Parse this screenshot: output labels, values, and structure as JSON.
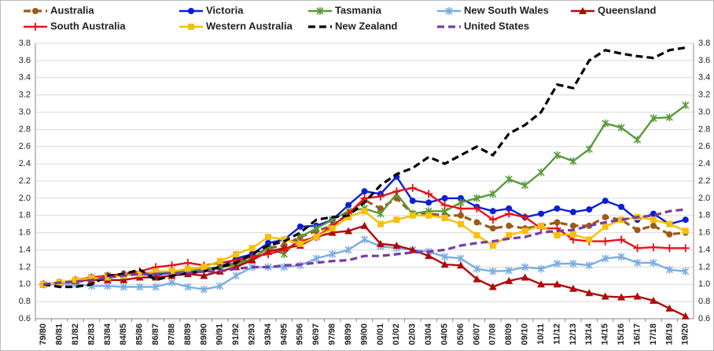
{
  "chart_data": {
    "type": "line",
    "categories": [
      "79/80",
      "80/81",
      "81/82",
      "82/83",
      "83/84",
      "84/85",
      "85/86",
      "86/87",
      "87/88",
      "88/89",
      "89/90",
      "90/91",
      "91/92",
      "92/93",
      "93/94",
      "94/95",
      "95/96",
      "96/97",
      "97/98",
      "98/99",
      "99/00",
      "00/01",
      "01/02",
      "02/03",
      "03/04",
      "04/05",
      "05/06",
      "06/07",
      "07/08",
      "08/09",
      "09/10",
      "10/11",
      "11/12",
      "12/13",
      "13/14",
      "14/15",
      "15/16",
      "16/17",
      "17/18",
      "18/19",
      "19/20"
    ],
    "ylim": [
      0.6,
      3.8
    ],
    "yticks": [
      {
        "value": 0.6,
        "label": "0.6"
      },
      {
        "value": 0.8,
        "label": "0.8"
      },
      {
        "value": 1.0,
        "label": "1.0"
      },
      {
        "value": 1.2,
        "label": "1.2"
      },
      {
        "value": 1.4,
        "label": "1.4"
      },
      {
        "value": 1.6,
        "label": "1.6"
      },
      {
        "value": 1.8,
        "label": "1.8"
      },
      {
        "value": 2.0,
        "label": "2.0"
      },
      {
        "value": 2.2,
        "label": "2.2"
      },
      {
        "value": 2.4,
        "label": "2.4"
      },
      {
        "value": 2.6,
        "label": "2.6"
      },
      {
        "value": 2.8,
        "label": "2.8"
      },
      {
        "value": 3.0,
        "label": "3.0"
      },
      {
        "value": 3.2,
        "label": "3.2"
      },
      {
        "value": 3.4,
        "label": "3.4"
      },
      {
        "value": 3.6,
        "label": "3.6"
      },
      {
        "value": 3.8,
        "label": "3.8"
      }
    ],
    "grid": true,
    "series": [
      {
        "name": "Australia",
        "color": "#9c5a1a",
        "marker": "circle",
        "dash": true,
        "values": [
          1.0,
          1.02,
          1.04,
          1.07,
          1.1,
          1.1,
          1.12,
          1.12,
          1.14,
          1.15,
          1.17,
          1.2,
          1.25,
          1.32,
          1.42,
          1.45,
          1.55,
          1.62,
          1.68,
          1.82,
          1.98,
          1.88,
          2.0,
          1.82,
          1.82,
          1.8,
          1.8,
          1.72,
          1.65,
          1.68,
          1.65,
          1.68,
          1.72,
          1.68,
          1.68,
          1.78,
          1.75,
          1.63,
          1.68,
          1.58,
          1.6
        ]
      },
      {
        "name": "Victoria",
        "color": "#0a1fd6",
        "marker": "circle",
        "dash": false,
        "values": [
          1.0,
          1.02,
          1.05,
          1.07,
          1.1,
          1.12,
          1.12,
          1.1,
          1.15,
          1.15,
          1.18,
          1.2,
          1.3,
          1.35,
          1.48,
          1.52,
          1.67,
          1.68,
          1.75,
          1.92,
          2.08,
          2.05,
          2.25,
          1.97,
          1.95,
          2.0,
          2.0,
          1.9,
          1.85,
          1.88,
          1.78,
          1.82,
          1.88,
          1.84,
          1.87,
          1.97,
          1.9,
          1.75,
          1.82,
          1.7,
          1.75
        ]
      },
      {
        "name": "Tasmania",
        "color": "#5a9a3a",
        "marker": "star",
        "dash": false,
        "values": [
          1.0,
          1.02,
          1.05,
          1.08,
          1.1,
          1.1,
          1.12,
          1.13,
          1.15,
          1.15,
          1.18,
          1.2,
          1.22,
          1.3,
          1.42,
          1.35,
          1.55,
          1.65,
          1.75,
          1.85,
          1.88,
          1.82,
          2.05,
          1.82,
          1.85,
          1.85,
          1.95,
          2.0,
          2.05,
          2.22,
          2.15,
          2.3,
          2.5,
          2.43,
          2.57,
          2.87,
          2.82,
          2.68,
          2.93,
          2.94,
          3.08
        ]
      },
      {
        "name": "New South Wales",
        "color": "#7aaee0",
        "marker": "star",
        "dash": false,
        "values": [
          1.0,
          1.0,
          1.0,
          0.98,
          0.98,
          0.97,
          0.97,
          0.97,
          1.02,
          0.97,
          0.94,
          0.98,
          1.1,
          1.2,
          1.2,
          1.2,
          1.22,
          1.3,
          1.35,
          1.4,
          1.52,
          1.44,
          1.42,
          1.4,
          1.38,
          1.32,
          1.3,
          1.18,
          1.15,
          1.16,
          1.2,
          1.18,
          1.24,
          1.24,
          1.22,
          1.3,
          1.32,
          1.25,
          1.25,
          1.17,
          1.15
        ]
      },
      {
        "name": "Queensland",
        "color": "#b00a0a",
        "marker": "triangle",
        "dash": false,
        "values": [
          1.0,
          1.02,
          1.04,
          1.05,
          1.05,
          1.05,
          1.08,
          1.08,
          1.1,
          1.12,
          1.1,
          1.15,
          1.2,
          1.28,
          1.38,
          1.42,
          1.45,
          1.55,
          1.6,
          1.62,
          1.68,
          1.47,
          1.45,
          1.4,
          1.33,
          1.23,
          1.22,
          1.06,
          0.97,
          1.04,
          1.08,
          1.0,
          1.0,
          0.95,
          0.9,
          0.86,
          0.85,
          0.86,
          0.81,
          0.72,
          0.63
        ]
      },
      {
        "name": "South Australia",
        "color": "#e8101a",
        "marker": "plus",
        "dash": false,
        "values": [
          1.0,
          1.02,
          1.05,
          1.08,
          1.1,
          1.12,
          1.15,
          1.2,
          1.22,
          1.25,
          1.22,
          1.25,
          1.28,
          1.32,
          1.35,
          1.4,
          1.5,
          1.55,
          1.68,
          1.82,
          2.0,
          2.02,
          2.08,
          2.12,
          2.05,
          1.92,
          1.88,
          1.88,
          1.75,
          1.82,
          1.78,
          1.65,
          1.65,
          1.52,
          1.5,
          1.5,
          1.52,
          1.42,
          1.43,
          1.42,
          1.42
        ]
      },
      {
        "name": "Western Australia",
        "color": "#f5c00a",
        "marker": "square",
        "dash": false,
        "values": [
          1.0,
          1.02,
          1.05,
          1.07,
          1.08,
          1.1,
          1.12,
          1.15,
          1.15,
          1.18,
          1.2,
          1.27,
          1.35,
          1.42,
          1.55,
          1.52,
          1.47,
          1.55,
          1.65,
          1.78,
          1.85,
          1.7,
          1.75,
          1.8,
          1.8,
          1.77,
          1.7,
          1.57,
          1.45,
          1.57,
          1.62,
          1.68,
          1.57,
          1.58,
          1.52,
          1.67,
          1.75,
          1.78,
          1.75,
          1.7,
          1.62
        ]
      },
      {
        "name": "New Zealand",
        "color": "#000000",
        "marker": "none",
        "dash": true,
        "values": [
          1.0,
          0.97,
          0.97,
          1.0,
          1.1,
          1.12,
          1.17,
          1.05,
          1.1,
          1.13,
          1.15,
          1.2,
          1.25,
          1.35,
          1.45,
          1.5,
          1.6,
          1.75,
          1.78,
          1.8,
          1.95,
          2.15,
          2.28,
          2.35,
          2.48,
          2.4,
          2.5,
          2.6,
          2.5,
          2.75,
          2.85,
          3.0,
          3.32,
          3.28,
          3.6,
          3.72,
          3.68,
          3.65,
          3.63,
          3.72,
          3.75
        ]
      },
      {
        "name": "United States",
        "color": "#7a3aa8",
        "marker": "none",
        "dash": true,
        "values": [
          1.0,
          1.02,
          1.03,
          1.05,
          1.08,
          1.1,
          1.12,
          1.12,
          1.13,
          1.13,
          1.15,
          1.15,
          1.18,
          1.2,
          1.2,
          1.22,
          1.23,
          1.25,
          1.27,
          1.28,
          1.33,
          1.33,
          1.35,
          1.37,
          1.38,
          1.4,
          1.45,
          1.48,
          1.5,
          1.53,
          1.55,
          1.6,
          1.62,
          1.63,
          1.68,
          1.72,
          1.75,
          1.78,
          1.8,
          1.85,
          1.87
        ]
      }
    ]
  }
}
